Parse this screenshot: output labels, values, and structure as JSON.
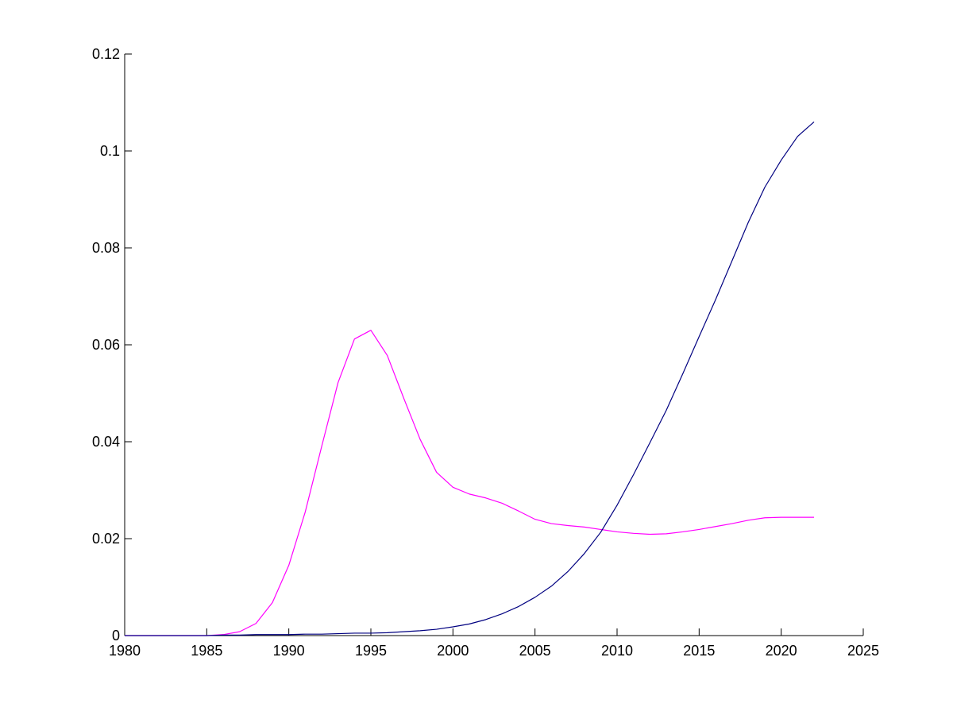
{
  "chart_data": {
    "type": "line",
    "title": "",
    "xlabel": "",
    "ylabel": "",
    "xlim": [
      1980,
      2025
    ],
    "ylim": [
      0,
      0.12
    ],
    "xticks": [
      1980,
      1985,
      1990,
      1995,
      2000,
      2005,
      2010,
      2015,
      2020,
      2025
    ],
    "xtick_labels": [
      "1980",
      "1985",
      "1990",
      "1995",
      "2000",
      "2005",
      "2010",
      "2015",
      "2020",
      "2025"
    ],
    "yticks": [
      0,
      0.02,
      0.04,
      0.06,
      0.08,
      0.1,
      0.12
    ],
    "ytick_labels": [
      "0",
      "0.02",
      "0.04",
      "0.06",
      "0.08",
      "0.1",
      "0.12"
    ],
    "grid": false,
    "legend": "none",
    "series": [
      {
        "color": "#ff00ff",
        "x": [
          1980,
          1981,
          1982,
          1983,
          1984,
          1985,
          1986,
          1987,
          1988,
          1989,
          1990,
          1991,
          1992,
          1993,
          1994,
          1995,
          1996,
          1997,
          1998,
          1999,
          2000,
          2001,
          2002,
          2003,
          2004,
          2005,
          2006,
          2007,
          2008,
          2009,
          2010,
          2011,
          2012,
          2013,
          2014,
          2015,
          2016,
          2017,
          2018,
          2019,
          2020,
          2021,
          2022
        ],
        "y": [
          0,
          0,
          0,
          0,
          0,
          0,
          0.0002,
          0.0008,
          0.0025,
          0.0068,
          0.0145,
          0.0255,
          0.039,
          0.0522,
          0.0612,
          0.063,
          0.0578,
          0.049,
          0.0405,
          0.0337,
          0.0306,
          0.0292,
          0.0284,
          0.0273,
          0.0257,
          0.024,
          0.0231,
          0.0227,
          0.0224,
          0.0219,
          0.0214,
          0.0211,
          0.0209,
          0.021,
          0.0214,
          0.0219,
          0.0225,
          0.0231,
          0.0238,
          0.0243,
          0.0244,
          0.0244,
          0.0244
        ]
      },
      {
        "color": "#000080",
        "x": [
          1980,
          1981,
          1982,
          1983,
          1984,
          1985,
          1986,
          1987,
          1988,
          1989,
          1990,
          1991,
          1992,
          1993,
          1994,
          1995,
          1996,
          1997,
          1998,
          1999,
          2000,
          2001,
          2002,
          2003,
          2004,
          2005,
          2006,
          2007,
          2008,
          2009,
          2010,
          2011,
          2012,
          2013,
          2014,
          2015,
          2016,
          2017,
          2018,
          2019,
          2020,
          2021,
          2022
        ],
        "y": [
          0,
          0,
          0,
          0,
          0,
          0,
          0.0001,
          0.0001,
          0.0002,
          0.0002,
          0.0002,
          0.0003,
          0.0003,
          0.0004,
          0.0005,
          0.0005,
          0.0006,
          0.0008,
          0.001,
          0.0013,
          0.0018,
          0.0024,
          0.0033,
          0.0045,
          0.006,
          0.0079,
          0.0102,
          0.0132,
          0.0169,
          0.0213,
          0.0269,
          0.0332,
          0.0398,
          0.0465,
          0.054,
          0.0617,
          0.0693,
          0.0773,
          0.0853,
          0.0925,
          0.0981,
          0.103,
          0.106
        ]
      }
    ]
  }
}
